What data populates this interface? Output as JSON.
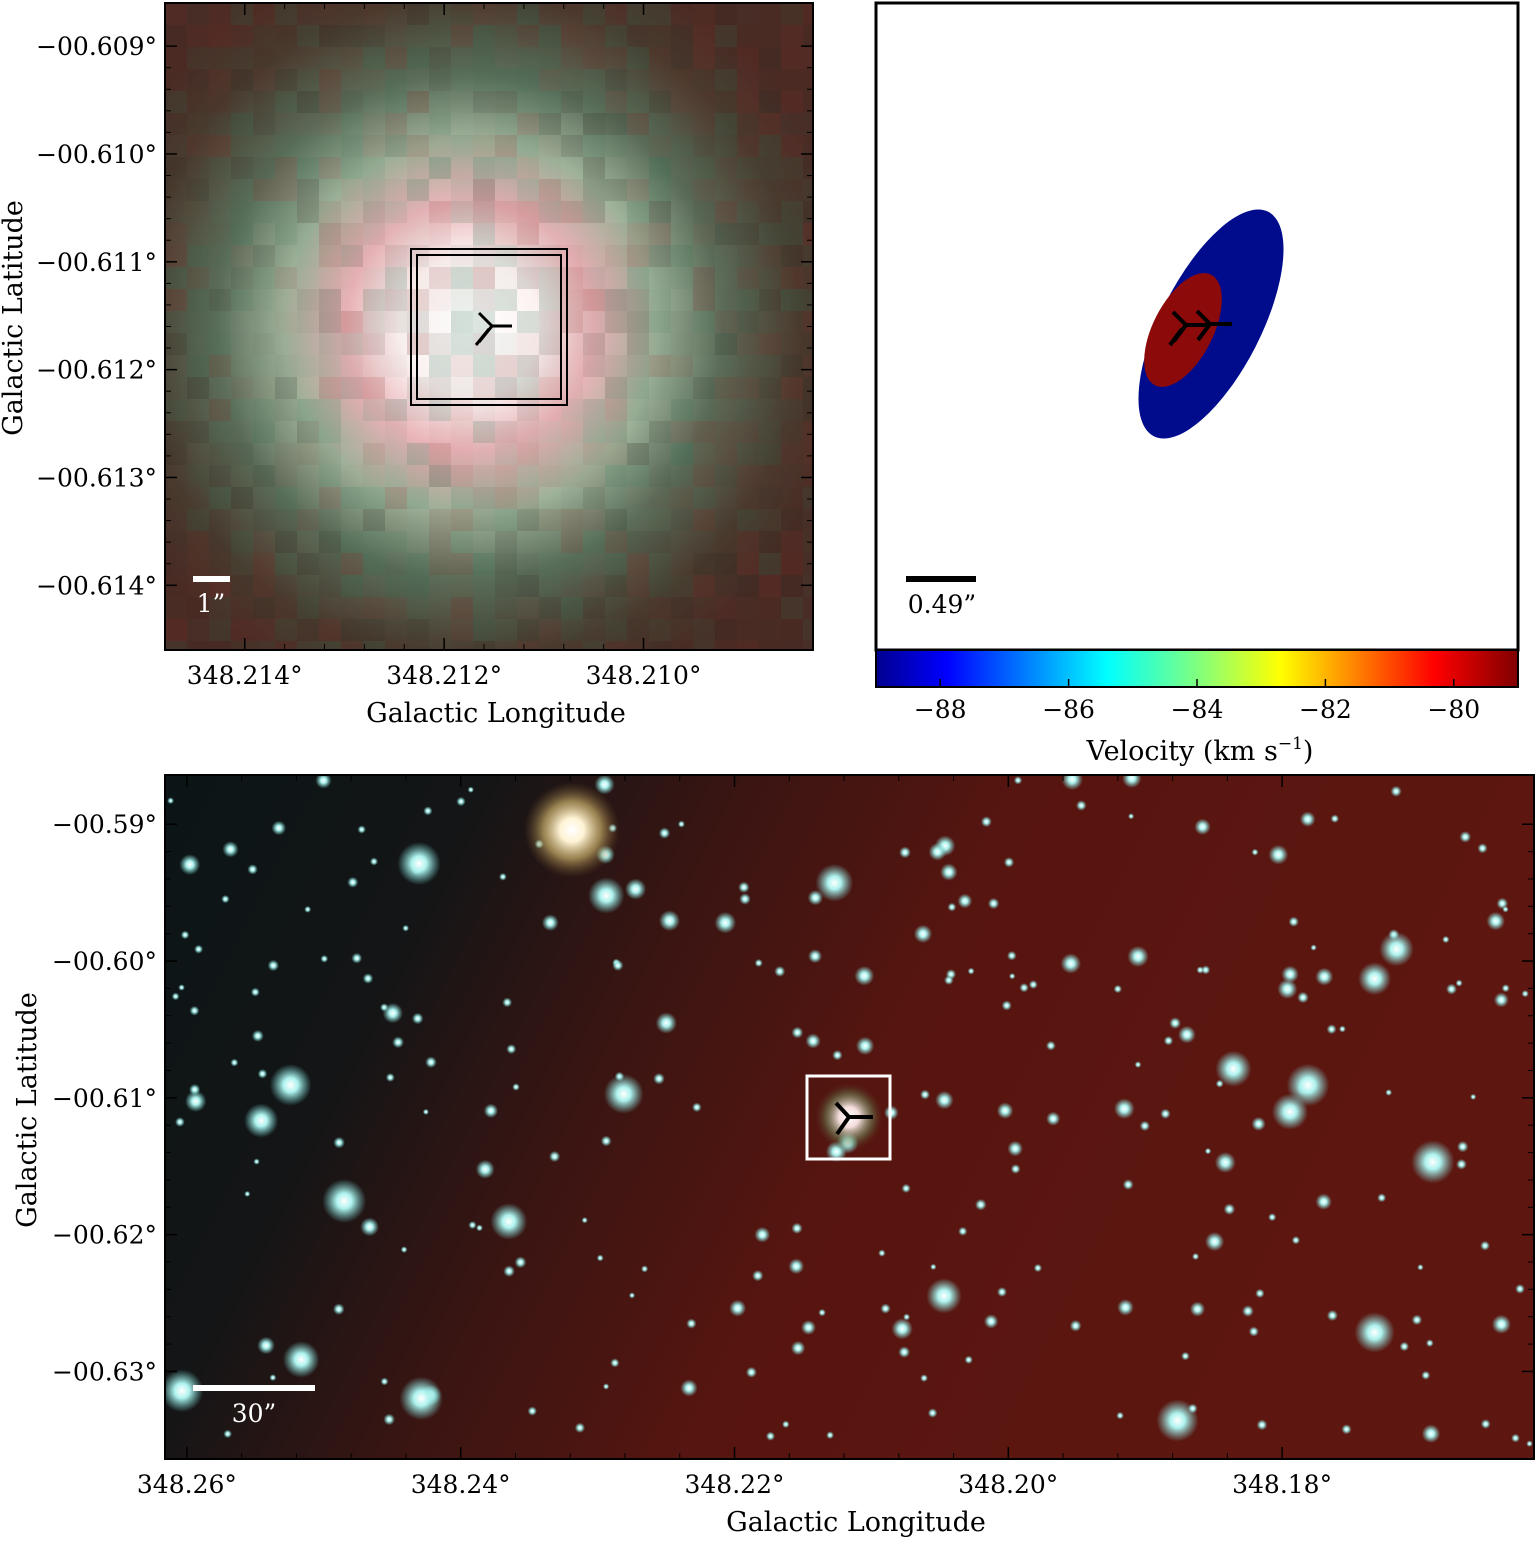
{
  "colors": {
    "frame": "#000000",
    "tl_bg_edge": "#3a3226",
    "tl_core": "#ffffff",
    "tl_pink": "#e8a8ae",
    "tl_green": "#5e8a6a",
    "bottom_bg_dark": "#0c1616",
    "bottom_bg_red": "#5a1510",
    "star": "#9ff0f0",
    "ellipse_blue": "#000c8c",
    "ellipse_red": "#8c0a0a"
  },
  "chart_data": [
    {
      "panel": "top-left",
      "type": "image",
      "xlabel": "Galactic Longitude",
      "ylabel": "Galactic Latitude",
      "xlim": [
        348.2148,
        348.2083
      ],
      "ylim": [
        -0.6146,
        -0.6086
      ],
      "xticks": [
        348.214,
        348.212,
        348.21
      ],
      "xtick_labels": [
        "348.214°",
        "348.212°",
        "348.210°"
      ],
      "yticks": [
        -0.609,
        -0.61,
        -0.611,
        -0.612,
        -0.613,
        -0.614
      ],
      "ytick_labels": [
        "−00.609°",
        "−00.610°",
        "−00.611°",
        "−00.612°",
        "−00.613°",
        "−00.614°"
      ],
      "scale_bar": "1”",
      "source_marker": {
        "l": 348.2111,
        "b": -0.6115
      }
    },
    {
      "panel": "top-right",
      "type": "ellipses",
      "scale_bar": "0.49”",
      "colorbar": {
        "label": "Velocity (km s",
        "label_sup": "−1",
        "label_end": ")",
        "range": [
          -89,
          -79
        ],
        "ticks": [
          -88,
          -86,
          -84,
          -82,
          -80
        ],
        "tick_labels": [
          "−88",
          "−86",
          "−84",
          "−82",
          "−80"
        ],
        "colormap": "jet"
      },
      "ellipses": [
        {
          "velocity": -88.6,
          "color": "blue"
        },
        {
          "velocity": -79.6,
          "color": "dark red"
        }
      ]
    },
    {
      "panel": "bottom",
      "type": "image",
      "xlabel": "Galactic Longitude",
      "ylabel": "Galactic Latitude",
      "xlim": [
        348.2616,
        348.1616
      ],
      "ylim": [
        -0.6364,
        -0.5864
      ],
      "xticks": [
        348.26,
        348.24,
        348.22,
        348.2,
        348.18
      ],
      "xtick_labels": [
        "348.26°",
        "348.24°",
        "348.22°",
        "348.20°",
        "348.18°"
      ],
      "yticks": [
        -0.59,
        -0.6,
        -0.61,
        -0.62,
        -0.63
      ],
      "ytick_labels": [
        "−00.59°",
        "−00.60°",
        "−00.61°",
        "−00.62°",
        "−00.63°"
      ],
      "scale_bar": "30”",
      "source_marker": {
        "l": 348.2111,
        "b": -0.6115
      }
    }
  ]
}
